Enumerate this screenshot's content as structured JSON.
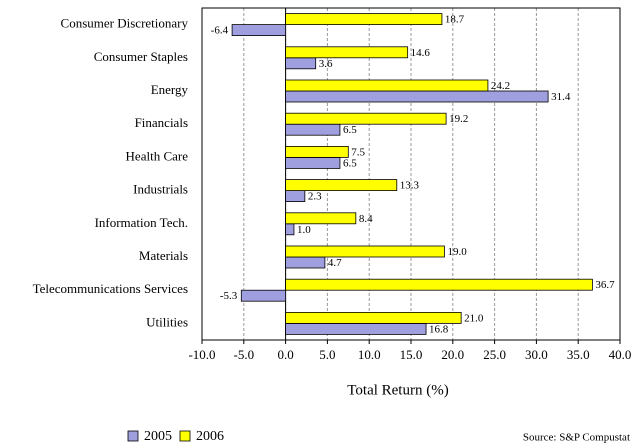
{
  "chart_data": {
    "type": "bar",
    "orientation": "horizontal",
    "x_label": "Total Return (%)",
    "source": "Source: S&P Compustat",
    "categories": [
      "Consumer Discretionary",
      "Consumer Staples",
      "Energy",
      "Financials",
      "Health Care",
      "Industrials",
      "Information Tech.",
      "Materials",
      "Telecommunications Services",
      "Utilities"
    ],
    "series": [
      {
        "name": "2005",
        "color": "#9f9fdf",
        "values": [
          -6.4,
          3.6,
          31.4,
          6.5,
          6.5,
          2.3,
          1.0,
          4.7,
          -5.3,
          16.8
        ],
        "value_labels": [
          "-6.4",
          "3.6",
          "31.4",
          "6.5",
          "6.5",
          "2.3",
          "1.0",
          "4.7",
          "-5.3",
          "16.8"
        ]
      },
      {
        "name": "2006",
        "color": "#ffff00",
        "values": [
          18.7,
          14.6,
          24.2,
          19.2,
          7.5,
          13.3,
          8.4,
          19.0,
          36.7,
          21.0
        ],
        "value_labels": [
          "18.7",
          "14.6",
          "24.2",
          "19.2",
          "7.5",
          "13.3",
          "8.4",
          "19.0",
          "36.7",
          "21.0"
        ]
      }
    ],
    "xlim": [
      -10,
      40
    ],
    "xticks": [
      {
        "value": -10,
        "label": "-10.0"
      },
      {
        "value": -5,
        "label": "-5.0"
      },
      {
        "value": 0,
        "label": "0.0"
      },
      {
        "value": 5,
        "label": "5.0"
      },
      {
        "value": 10,
        "label": "10.0"
      },
      {
        "value": 15,
        "label": "15.0"
      },
      {
        "value": 20,
        "label": "20.0"
      },
      {
        "value": 25,
        "label": "25.0"
      },
      {
        "value": 30,
        "label": "30.0"
      },
      {
        "value": 35,
        "label": "35.0"
      },
      {
        "value": 40,
        "label": "40.0"
      }
    ],
    "grid": true
  }
}
